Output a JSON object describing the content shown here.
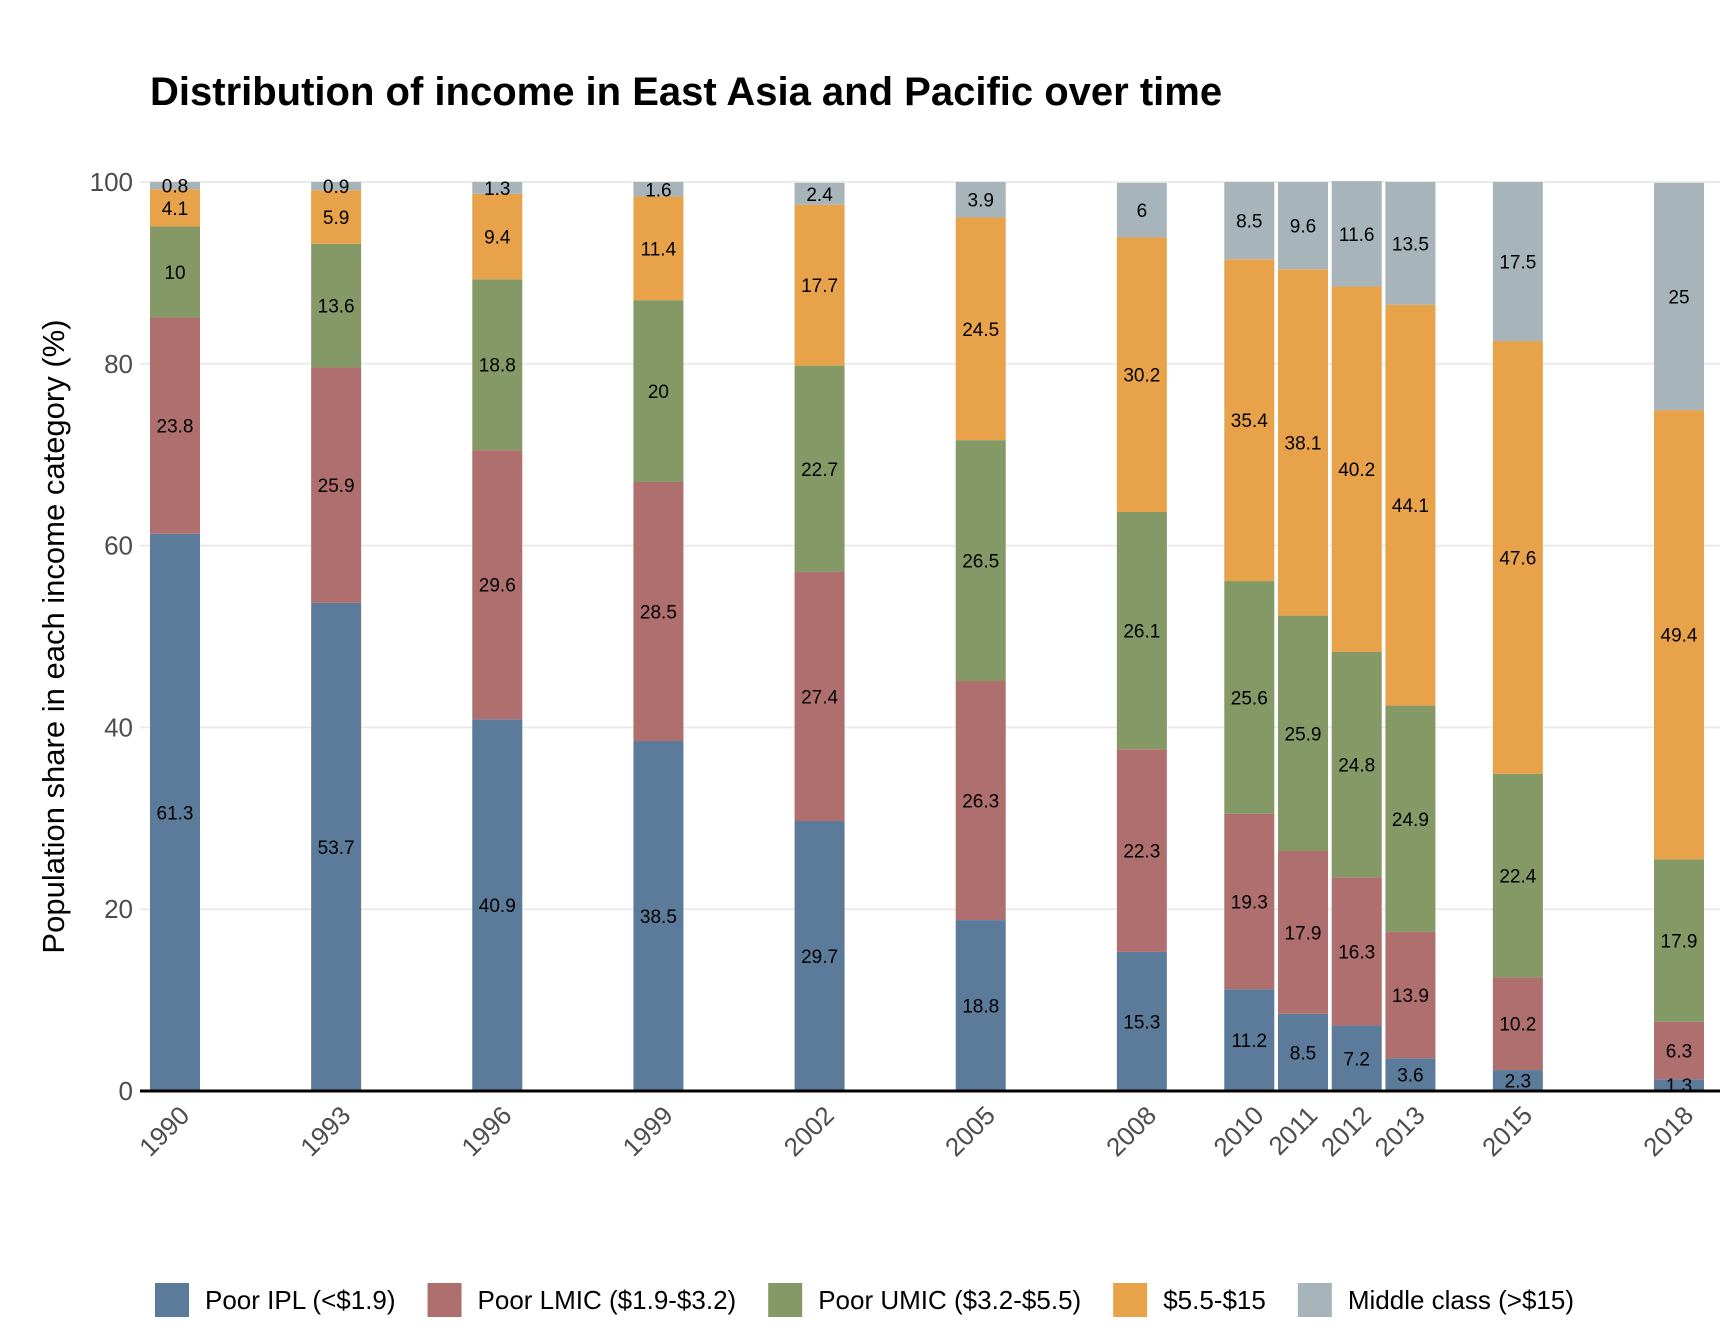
{
  "chart_data": {
    "type": "bar",
    "stacked": true,
    "title": "Distribution of income in East Asia and Pacific over time",
    "xlabel": "",
    "ylabel": "Population share in each income category (%)",
    "ylim": [
      0,
      100
    ],
    "yticks": [
      0,
      20,
      40,
      60,
      80,
      100
    ],
    "grid": true,
    "legend_position": "bottom",
    "x": [
      1990,
      1993,
      1996,
      1999,
      2002,
      2005,
      2008,
      2010,
      2011,
      2012,
      2013,
      2015,
      2018
    ],
    "series": [
      {
        "name": "Poor IPL (<$1.9)",
        "color": "#5c7a99",
        "values": [
          61.3,
          53.7,
          40.9,
          38.5,
          29.7,
          18.8,
          15.3,
          11.2,
          8.5,
          7.2,
          3.6,
          2.3,
          1.3
        ]
      },
      {
        "name": "Poor LMIC ($1.9-$3.2)",
        "color": "#b06f6f",
        "values": [
          23.8,
          25.9,
          29.6,
          28.5,
          27.4,
          26.3,
          22.3,
          19.3,
          17.9,
          16.3,
          13.9,
          10.2,
          6.3
        ]
      },
      {
        "name": "Poor UMIC ($3.2-$5.5)",
        "color": "#849966",
        "values": [
          10,
          13.6,
          18.8,
          20,
          22.7,
          26.5,
          26.1,
          25.6,
          25.9,
          24.8,
          24.9,
          22.4,
          17.9
        ]
      },
      {
        "name": "$5.5-$15",
        "color": "#e8a24a",
        "values": [
          4.1,
          5.9,
          9.4,
          11.4,
          17.7,
          24.5,
          30.2,
          35.4,
          38.1,
          40.2,
          44.1,
          47.6,
          49.4
        ]
      },
      {
        "name": "Middle class (>$15)",
        "color": "#a7b5bb",
        "values": [
          0.8,
          0.9,
          1.3,
          1.6,
          2.4,
          3.9,
          6,
          8.5,
          9.6,
          11.6,
          13.5,
          17.5,
          25
        ]
      }
    ]
  }
}
